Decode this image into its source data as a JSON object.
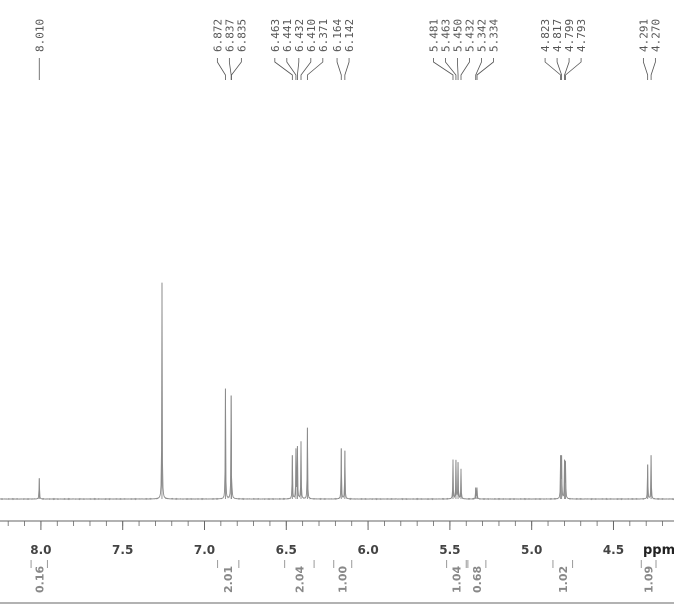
{
  "chart_data": {
    "type": "line",
    "xlabel": "ppm",
    "xlim": [
      8.25,
      4.13
    ],
    "x_ticks": [
      "8.0",
      "7.5",
      "7.0",
      "6.5",
      "6.0",
      "5.5",
      "5.0",
      "4.5"
    ],
    "x_tick_values": [
      8.0,
      7.5,
      7.0,
      6.5,
      6.0,
      5.5,
      5.0,
      4.5
    ],
    "grid": false,
    "peak_labels": [
      {
        "text": "8.010",
        "ppm": 8.01
      },
      {
        "text": "6.872",
        "ppm": 6.872
      },
      {
        "text": "6.837",
        "ppm": 6.837
      },
      {
        "text": "6.835",
        "ppm": 6.835
      },
      {
        "text": "6.463",
        "ppm": 6.463
      },
      {
        "text": "6.441",
        "ppm": 6.441
      },
      {
        "text": "6.432",
        "ppm": 6.432
      },
      {
        "text": "6.410",
        "ppm": 6.41
      },
      {
        "text": "6.371",
        "ppm": 6.371
      },
      {
        "text": "6.164",
        "ppm": 6.164
      },
      {
        "text": "6.142",
        "ppm": 6.142
      },
      {
        "text": "5.481",
        "ppm": 5.481
      },
      {
        "text": "5.463",
        "ppm": 5.463
      },
      {
        "text": "5.450",
        "ppm": 5.45
      },
      {
        "text": "5.432",
        "ppm": 5.432
      },
      {
        "text": "5.342",
        "ppm": 5.342
      },
      {
        "text": "5.334",
        "ppm": 5.334
      },
      {
        "text": "4.823",
        "ppm": 4.823
      },
      {
        "text": "4.817",
        "ppm": 4.817
      },
      {
        "text": "4.799",
        "ppm": 4.799
      },
      {
        "text": "4.793",
        "ppm": 4.793
      },
      {
        "text": "4.291",
        "ppm": 4.291
      },
      {
        "text": "4.270",
        "ppm": 4.27
      }
    ],
    "signals": [
      {
        "ppm": 8.01,
        "height": 0.09
      },
      {
        "ppm": 7.26,
        "height": 0.94
      },
      {
        "ppm": 6.872,
        "height": 0.48
      },
      {
        "ppm": 6.837,
        "height": 0.45
      },
      {
        "ppm": 6.835,
        "height": 0.1
      },
      {
        "ppm": 6.463,
        "height": 0.19
      },
      {
        "ppm": 6.441,
        "height": 0.22
      },
      {
        "ppm": 6.432,
        "height": 0.23
      },
      {
        "ppm": 6.41,
        "height": 0.25
      },
      {
        "ppm": 6.371,
        "height": 0.31
      },
      {
        "ppm": 6.164,
        "height": 0.22
      },
      {
        "ppm": 6.142,
        "height": 0.21
      },
      {
        "ppm": 5.481,
        "height": 0.17
      },
      {
        "ppm": 5.463,
        "height": 0.17
      },
      {
        "ppm": 5.45,
        "height": 0.16
      },
      {
        "ppm": 5.432,
        "height": 0.13
      },
      {
        "ppm": 5.342,
        "height": 0.05
      },
      {
        "ppm": 5.334,
        "height": 0.05
      },
      {
        "ppm": 4.823,
        "height": 0.19
      },
      {
        "ppm": 4.817,
        "height": 0.19
      },
      {
        "ppm": 4.799,
        "height": 0.17
      },
      {
        "ppm": 4.793,
        "height": 0.16
      },
      {
        "ppm": 4.291,
        "height": 0.15
      },
      {
        "ppm": 4.27,
        "height": 0.19
      }
    ],
    "integrals": [
      {
        "text": "0.16",
        "from": 8.06,
        "to": 7.96
      },
      {
        "text": "2.01",
        "from": 6.92,
        "to": 6.79
      },
      {
        "text": "2.04",
        "from": 6.51,
        "to": 6.33
      },
      {
        "text": "1.00",
        "from": 6.21,
        "to": 6.1
      },
      {
        "text": "1.04",
        "from": 5.52,
        "to": 5.4
      },
      {
        "text": "0.68",
        "from": 5.39,
        "to": 5.28
      },
      {
        "text": "1.02",
        "from": 4.87,
        "to": 4.75
      },
      {
        "text": "1.09",
        "from": 4.33,
        "to": 4.24
      }
    ],
    "colors": {
      "spectrum": "#8a8a8a",
      "label_line": "#555555",
      "axis": "#666666",
      "integral": "#9a9a9a"
    }
  }
}
